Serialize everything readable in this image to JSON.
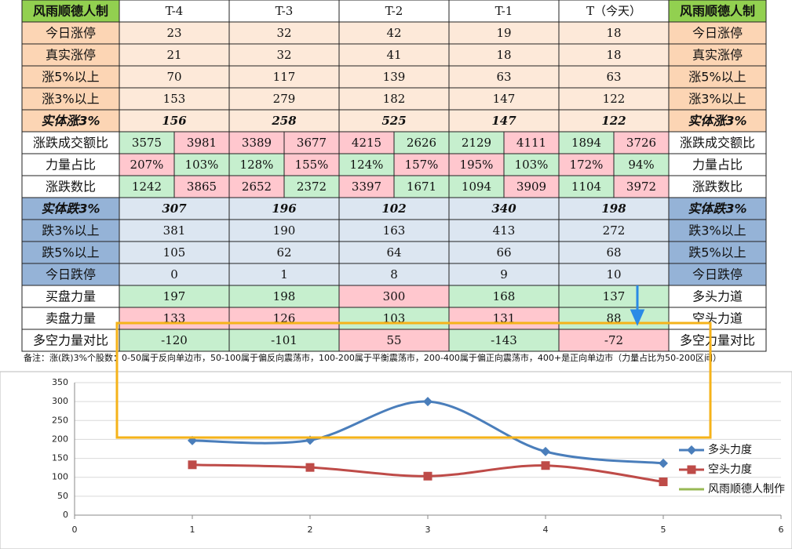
{
  "table": {
    "header": [
      "风雨顺德人制",
      "T-4",
      "T-3",
      "T-2",
      "T-1",
      "T（今天）",
      "风雨顺德人制"
    ],
    "rows": [
      [
        "今日涨停",
        "23",
        "32",
        "42",
        "19",
        "18",
        "今日涨停"
      ],
      [
        "真实涨停",
        "21",
        "32",
        "41",
        "18",
        "18",
        "真实涨停"
      ],
      [
        "涨5%以上",
        "70",
        "117",
        "139",
        "63",
        "63",
        "涨5%以上"
      ],
      [
        "涨3%以上",
        "153",
        "279",
        "182",
        "147",
        "122",
        "涨3%以上"
      ],
      [
        "实体涨3%",
        "156",
        "258",
        "525",
        "147",
        "122",
        "实体涨3%"
      ],
      [
        "涨跌成交额比",
        "3575",
        "3981",
        "3389",
        "3677",
        "4215",
        "2626",
        "2129",
        "4111",
        "1894",
        "3726",
        "涨跌成交额比"
      ],
      [
        "力量占比",
        "207%",
        "103%",
        "128%",
        "155%",
        "124%",
        "157%",
        "195%",
        "103%",
        "172%",
        "94%",
        "力量占比"
      ],
      [
        "涨跌数比",
        "1242",
        "3865",
        "2652",
        "2372",
        "3397",
        "1671",
        "1094",
        "3909",
        "1104",
        "3972",
        "涨跌数比"
      ],
      [
        "实体跌3%",
        "307",
        "196",
        "102",
        "340",
        "198",
        "实体跌3%"
      ],
      [
        "跌3%以上",
        "381",
        "190",
        "163",
        "413",
        "272",
        "跌3%以上"
      ],
      [
        "跌5%以上",
        "105",
        "62",
        "64",
        "66",
        "68",
        "跌5%以上"
      ],
      [
        "今日跌停",
        "0",
        "1",
        "8",
        "9",
        "10",
        "今日跌停"
      ],
      [
        "买盘力量",
        "197",
        "198",
        "300",
        "168",
        "137",
        "多头力道"
      ],
      [
        "卖盘力量",
        "133",
        "126",
        "103",
        "131",
        "88",
        "空头力道"
      ],
      [
        "多空力量对比",
        "-120",
        "-101",
        "55",
        "-143",
        "-72",
        "多空力量对比"
      ]
    ]
  },
  "note": "备注：涨(跌)3%个股数：0-50属于反向单边市，50-100属于偏反向震荡市，100-200属于平衡震荡市，200-400属于偏正向震荡市，400+是正向单边市（力量占比为50-200区间）",
  "chart_data": {
    "type": "line",
    "x": [
      1,
      2,
      3,
      4,
      5
    ],
    "xlim": [
      0,
      6
    ],
    "xticks": [
      0,
      1,
      2,
      3,
      4,
      5,
      6
    ],
    "ylim": [
      0,
      350
    ],
    "yticks": [
      0,
      50,
      100,
      150,
      200,
      250,
      300,
      350
    ],
    "grid": true,
    "smooth": true,
    "legend": "right",
    "series": [
      {
        "name": "多头力度",
        "color": "#4a7ebb",
        "values": [
          197,
          198,
          300,
          168,
          137
        ]
      },
      {
        "name": "空头力度",
        "color": "#be4b48",
        "values": [
          133,
          126,
          103,
          131,
          88
        ]
      },
      {
        "name": "风雨顺德人制作",
        "color": "#98b954"
      }
    ]
  }
}
